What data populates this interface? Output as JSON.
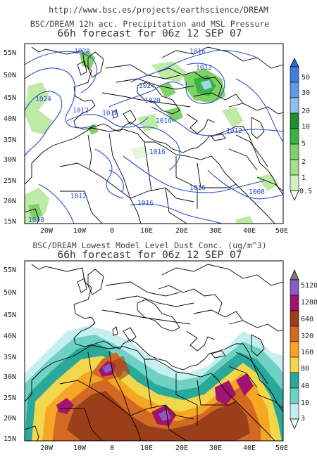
{
  "url": "http://www.bsc.es/projects/earthscience/DREAM",
  "top_panel": {
    "title_line1": "BSC/DREAM 12h acc. Precipitation and MSL Pressure",
    "title_line2": "66h forecast for 06z 12 SEP 07",
    "lat_labels": [
      "55N",
      "50N",
      "45N",
      "40N",
      "35N",
      "30N",
      "25N",
      "20N",
      "15N"
    ],
    "lon_labels": [
      "20W",
      "10W",
      "0",
      "10E",
      "20E",
      "30E",
      "40E",
      "50E"
    ],
    "isobar_labels": [
      "1020",
      "1016",
      "1012",
      "1024",
      "1016",
      "1012",
      "1016",
      "1024",
      "1020",
      "1016",
      "1012",
      "1016",
      "1016",
      "1012",
      "1008",
      "1008"
    ],
    "colorbar": {
      "labels": [
        "50",
        "30",
        "20",
        "10",
        "5",
        "2",
        "1",
        "0.5"
      ],
      "colors": [
        "#2f6fd6",
        "#4f8fe0",
        "#7fb3ea",
        "#a9d2f1",
        "#1e8f2b",
        "#38b344",
        "#7fd168",
        "#bfeaa6",
        "#e6f7d9"
      ]
    }
  },
  "bottom_panel": {
    "title_line1": "BSC/DREAM Lowest Model Level Dust Conc. (ug/m^3)",
    "title_line2": "66h forecast for 06z 12 SEP 07",
    "lat_labels": [
      "55N",
      "50N",
      "45N",
      "40N",
      "35N",
      "30N",
      "25N",
      "20N",
      "15N"
    ],
    "lon_labels": [
      "20W",
      "10W",
      "0",
      "10E",
      "20E",
      "30E",
      "40E",
      "50E"
    ],
    "colorbar": {
      "labels": [
        "5120",
        "1280",
        "640",
        "320",
        "160",
        "80",
        "40",
        "10",
        "3"
      ],
      "colors": [
        "#7a7a7a",
        "#8a5cc2",
        "#a0136f",
        "#9b3f1a",
        "#d26a24",
        "#f5a623",
        "#f2d64b",
        "#2aa89a",
        "#6fd1c4",
        "#c4eef0"
      ]
    }
  }
}
